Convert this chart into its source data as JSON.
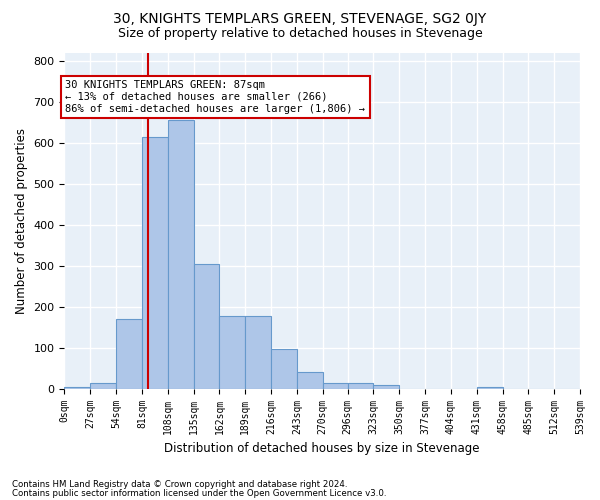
{
  "title": "30, KNIGHTS TEMPLARS GREEN, STEVENAGE, SG2 0JY",
  "subtitle": "Size of property relative to detached houses in Stevenage",
  "xlabel": "Distribution of detached houses by size in Stevenage",
  "ylabel": "Number of detached properties",
  "bin_edges": [
    0,
    27,
    54,
    81,
    108,
    135,
    162,
    189,
    216,
    243,
    270,
    296,
    323,
    350,
    377,
    404,
    431,
    458,
    485,
    512,
    539
  ],
  "bar_heights": [
    5,
    15,
    170,
    615,
    655,
    305,
    178,
    178,
    98,
    40,
    15,
    15,
    10,
    0,
    0,
    0,
    5,
    0,
    0,
    0
  ],
  "bar_color": "#aec6e8",
  "bar_edge_color": "#6699cc",
  "property_size": 87,
  "vline_color": "#cc0000",
  "annotation_text": "30 KNIGHTS TEMPLARS GREEN: 87sqm\n← 13% of detached houses are smaller (266)\n86% of semi-detached houses are larger (1,806) →",
  "annotation_box_color": "#ffffff",
  "annotation_box_edge_color": "#cc0000",
  "yticks": [
    0,
    100,
    200,
    300,
    400,
    500,
    600,
    700,
    800
  ],
  "ylim": [
    0,
    820
  ],
  "bg_color": "#e8f0f8",
  "grid_color": "#ffffff",
  "footer_line1": "Contains HM Land Registry data © Crown copyright and database right 2024.",
  "footer_line2": "Contains public sector information licensed under the Open Government Licence v3.0."
}
